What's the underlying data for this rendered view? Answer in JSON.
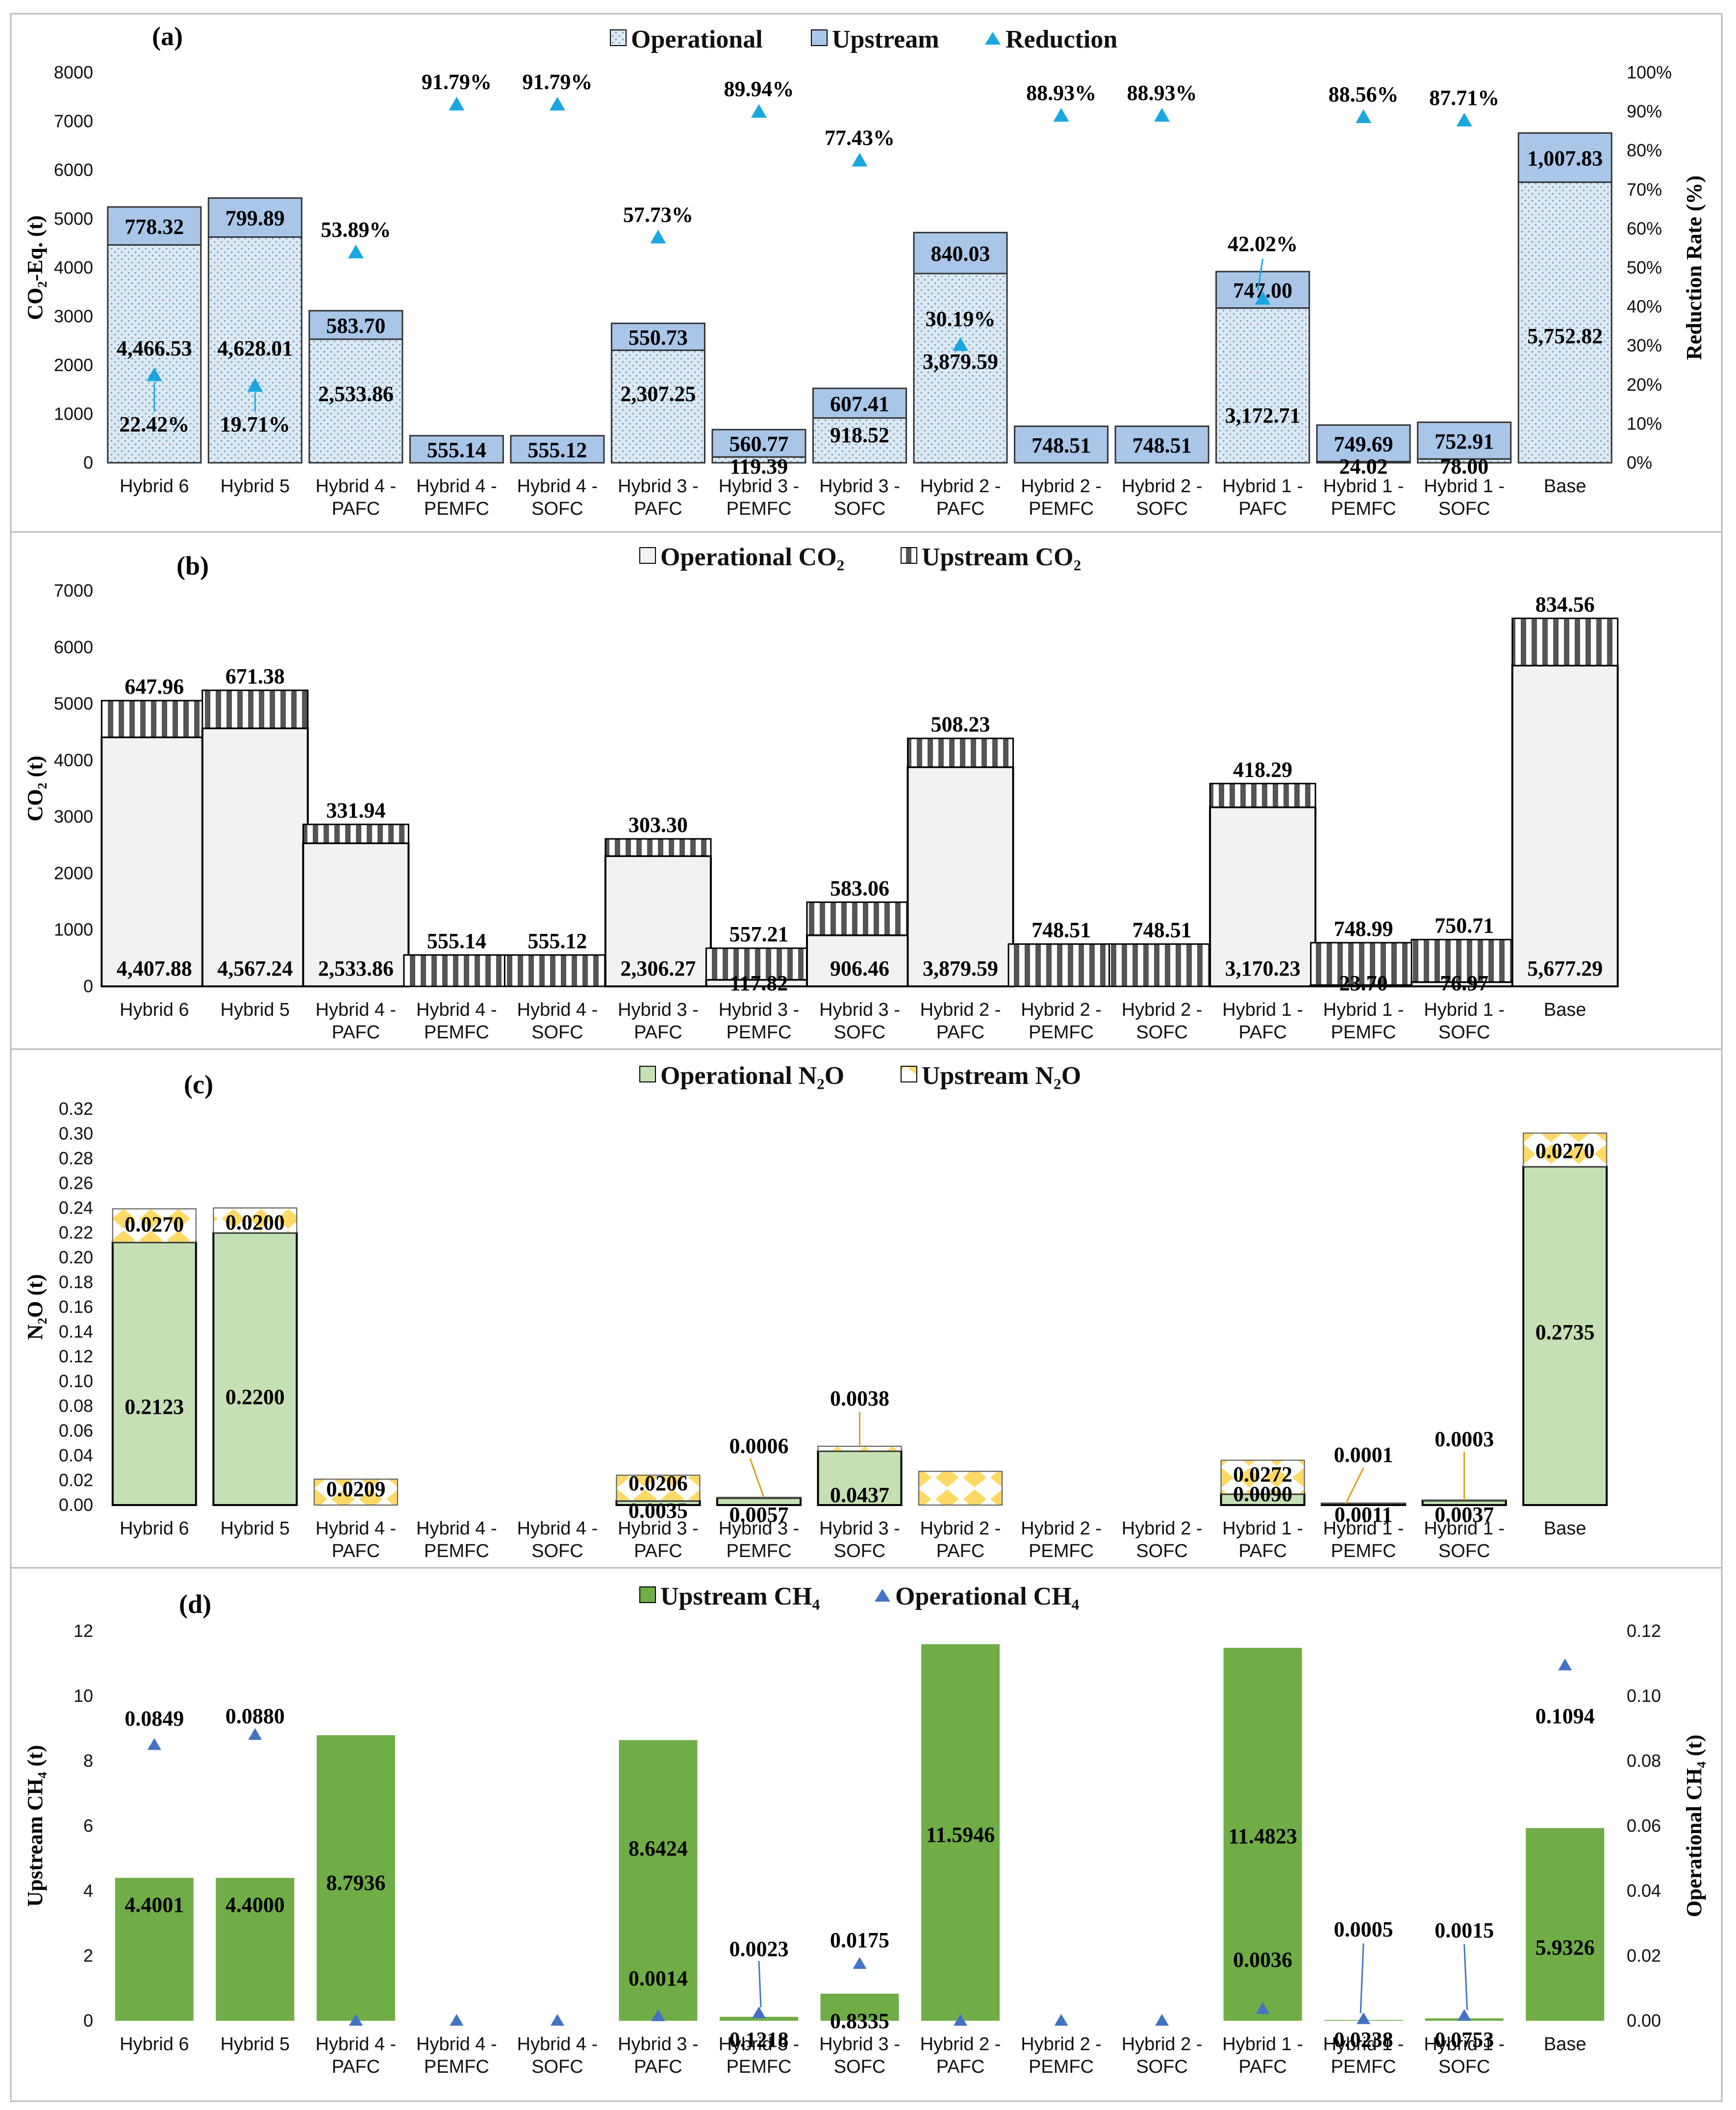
{
  "categories": [
    [
      "Hybrid 6"
    ],
    [
      "Hybrid 5"
    ],
    [
      "Hybrid 4 -",
      "PAFC"
    ],
    [
      "Hybrid 4 -",
      "PEMFC"
    ],
    [
      "Hybrid 4 -",
      "SOFC"
    ],
    [
      "Hybrid 3 -",
      "PAFC"
    ],
    [
      "Hybrid 3 -",
      "PEMFC"
    ],
    [
      "Hybrid 3 -",
      "SOFC"
    ],
    [
      "Hybrid 2 -",
      "PAFC"
    ],
    [
      "Hybrid 2 -",
      "PEMFC"
    ],
    [
      "Hybrid 2 -",
      "SOFC"
    ],
    [
      "Hybrid 1 -",
      "PAFC"
    ],
    [
      "Hybrid 1 -",
      "PEMFC"
    ],
    [
      "Hybrid 1 -",
      "SOFC"
    ],
    [
      "Base"
    ]
  ],
  "colors": {
    "operational_co2eq": "#dce9f4",
    "operational_dots": "#6fa3c8",
    "upstream_co2eq": "#a9c6e8",
    "reduction": "#1aa7e0",
    "op_co2": "#f2f2f2",
    "op_n2o": "#c5e0b4",
    "up_n2o_diamond": "#ffd966",
    "upstream_ch4": "#70ad47",
    "operational_ch4": "#4472c4"
  },
  "chart_data": [
    {
      "type": "bar",
      "stacked": true,
      "panel_label": "(a)",
      "ylabel": "CO₂-Eq. (t)",
      "y2label": "Reduction Rate (%)",
      "ylim": [
        0,
        8000
      ],
      "y_ticks": [
        0,
        1000,
        2000,
        3000,
        4000,
        5000,
        6000,
        7000,
        8000
      ],
      "y2lim": [
        0,
        100
      ],
      "y2_ticks": [
        "0%",
        "10%",
        "20%",
        "30%",
        "40%",
        "50%",
        "60%",
        "70%",
        "80%",
        "90%",
        "100%"
      ],
      "legend": [
        "Operational",
        "Upstream",
        "Reduction"
      ],
      "series": [
        {
          "name": "Operational",
          "values": [
            4466.53,
            4628.01,
            2533.86,
            0,
            0,
            2307.25,
            119.39,
            918.52,
            3879.59,
            0,
            0,
            3172.71,
            24.02,
            78.0,
            5752.82
          ],
          "labels": [
            "4,466.53",
            "4,628.01",
            "2,533.86",
            "",
            "",
            "2,307.25",
            "119.39",
            "918.52",
            "3,879.59",
            "",
            "",
            "3,172.71",
            "24.02",
            "78.00",
            "5,752.82"
          ]
        },
        {
          "name": "Upstream",
          "values": [
            778.32,
            799.89,
            583.7,
            555.14,
            555.12,
            550.73,
            560.77,
            607.41,
            840.03,
            748.51,
            748.51,
            747.0,
            749.69,
            752.91,
            1007.83
          ],
          "labels": [
            "778.32",
            "799.89",
            "583.70",
            "555.14",
            "555.12",
            "550.73",
            "560.77",
            "607.41",
            "840.03",
            "748.51",
            "748.51",
            "747.00",
            "749.69",
            "752.91",
            "1,007.83"
          ]
        },
        {
          "name": "Reduction",
          "axis": "right",
          "values": [
            22.42,
            19.71,
            53.89,
            91.79,
            91.79,
            57.73,
            89.94,
            77.43,
            30.19,
            88.93,
            88.93,
            42.02,
            88.56,
            87.71,
            null
          ],
          "labels": [
            "22.42%",
            "19.71%",
            "53.89%",
            "91.79%",
            "91.79%",
            "57.73%",
            "89.94%",
            "77.43%",
            "30.19%",
            "88.93%",
            "88.93%",
            "42.02%",
            "88.56%",
            "87.71%",
            ""
          ]
        }
      ]
    },
    {
      "type": "bar",
      "stacked": true,
      "panel_label": "(b)",
      "ylabel": "CO₂ (t)",
      "ylim": [
        0,
        7000
      ],
      "y_ticks": [
        0,
        1000,
        2000,
        3000,
        4000,
        5000,
        6000,
        7000
      ],
      "legend": [
        "Operational CO₂",
        "Upstream CO₂"
      ],
      "series": [
        {
          "name": "Operational CO₂",
          "values": [
            4407.88,
            4567.24,
            2533.86,
            0,
            0,
            2306.27,
            117.82,
            906.46,
            3879.59,
            0,
            0,
            3170.23,
            23.7,
            76.97,
            5677.29
          ],
          "labels": [
            "4,407.88",
            "4,567.24",
            "2,533.86",
            "",
            "",
            "2,306.27",
            "117.82",
            "906.46",
            "3,879.59",
            "",
            "",
            "3,170.23",
            "23.70",
            "76.97",
            "5,677.29"
          ]
        },
        {
          "name": "Upstream CO₂",
          "values": [
            647.96,
            671.38,
            331.94,
            555.14,
            555.12,
            303.3,
            557.21,
            583.06,
            508.23,
            748.51,
            748.51,
            418.29,
            748.99,
            750.71,
            834.56
          ],
          "labels": [
            "647.96",
            "671.38",
            "331.94",
            "555.14",
            "555.12",
            "303.30",
            "557.21",
            "583.06",
            "508.23",
            "748.51",
            "748.51",
            "418.29",
            "748.99",
            "750.71",
            "834.56"
          ]
        }
      ]
    },
    {
      "type": "bar",
      "stacked": true,
      "panel_label": "(c)",
      "ylabel": "N₂O (t)",
      "ylim": [
        0,
        0.32
      ],
      "y_ticks": [
        "0.00",
        "0.02",
        "0.04",
        "0.06",
        "0.08",
        "0.10",
        "0.12",
        "0.14",
        "0.16",
        "0.18",
        "0.20",
        "0.22",
        "0.24",
        "0.26",
        "0.28",
        "0.30",
        "0.32"
      ],
      "legend": [
        "Operational N₂O",
        "Upstream N₂O"
      ],
      "series": [
        {
          "name": "Operational N₂O",
          "values": [
            0.2123,
            0.22,
            0,
            0,
            0,
            0.0035,
            0.0057,
            0.0437,
            0,
            0,
            0,
            0.009,
            0.0011,
            0.0037,
            0.2735
          ],
          "labels": [
            "0.2123",
            "0.2200",
            "",
            "",
            "",
            "0.0035",
            "0.0057",
            "0.0437",
            "",
            "",
            "",
            "0.0090",
            "0.0011",
            "0.0037",
            "0.2735"
          ]
        },
        {
          "name": "Upstream N₂O",
          "values": [
            0.027,
            0.02,
            0.0209,
            0,
            0,
            0.0206,
            0.0006,
            0.0038,
            0.0272,
            0,
            0,
            0.0272,
            0.0001,
            0.0003,
            0.027
          ],
          "labels": [
            "0.0270",
            "0.0200",
            "0.0209",
            "",
            "",
            "0.0206",
            "0.0006",
            "0.0038",
            "",
            "",
            "",
            "0.0272",
            "0.0001",
            "0.0003",
            "0.0270"
          ]
        }
      ]
    },
    {
      "type": "bar",
      "panel_label": "(d)",
      "ylabel": "Upstream CH₄ (t)",
      "y2label": "Operational CH₄ (t)",
      "ylim": [
        0,
        12
      ],
      "y_ticks": [
        0,
        2,
        4,
        6,
        8,
        10,
        12
      ],
      "y2lim": [
        0,
        0.12
      ],
      "y2_ticks": [
        "0.00",
        "0.02",
        "0.04",
        "0.06",
        "0.08",
        "0.10",
        "0.12"
      ],
      "legend": [
        "Upstream CH₄",
        "Operational CH₄"
      ],
      "series": [
        {
          "name": "Upstream CH₄",
          "values": [
            4.4001,
            4.4,
            8.7936,
            0,
            0,
            8.6424,
            0.1218,
            0.8335,
            11.5946,
            0,
            0,
            11.4823,
            0.0238,
            0.0753,
            5.9326
          ],
          "labels": [
            "4.4001",
            "4.4000",
            "8.7936",
            "",
            "",
            "8.6424",
            "0.1218",
            "0.8335",
            "11.5946",
            "",
            "",
            "11.4823",
            "0.0238",
            "0.0753",
            "5.9326"
          ]
        },
        {
          "name": "Operational CH₄",
          "axis": "right",
          "values": [
            0.0849,
            0.088,
            0,
            0,
            0,
            0.0014,
            0.0023,
            0.0175,
            0,
            0,
            0,
            0.0036,
            0.0005,
            0.0015,
            0.1094
          ],
          "labels": [
            "0.0849",
            "0.0880",
            "",
            "",
            "",
            "0.0014",
            "0.0023",
            "0.0175",
            "",
            "",
            "",
            "0.0036",
            "0.0005",
            "0.0015",
            "0.1094"
          ]
        }
      ]
    }
  ]
}
